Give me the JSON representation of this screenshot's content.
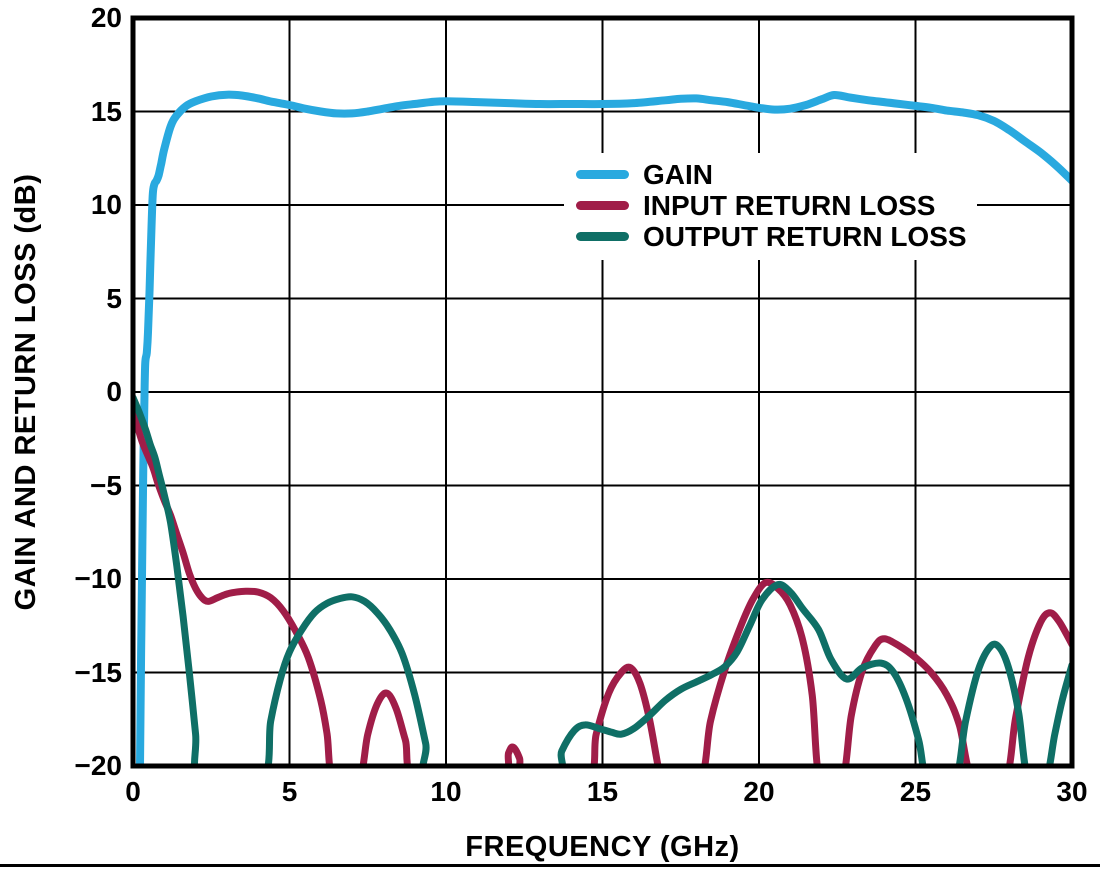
{
  "figure": {
    "background": "#ffffff",
    "separator_color": "#000000"
  },
  "chart_data": {
    "type": "line",
    "title": "",
    "xlabel": "FREQUENCY (GHz)",
    "ylabel": "GAIN AND RETURN LOSS (dB)",
    "xlim": [
      0,
      30
    ],
    "ylim": [
      -20,
      20
    ],
    "xticks": [
      0,
      5,
      10,
      15,
      20,
      25,
      30
    ],
    "yticks": [
      20,
      15,
      10,
      5,
      0,
      -5,
      -10,
      -15,
      -20
    ],
    "xtick_labels": [
      "0",
      "5",
      "10",
      "15",
      "20",
      "25",
      "30"
    ],
    "ytick_labels": [
      "20",
      "15",
      "10",
      "5",
      "0",
      "−5",
      "−10",
      "−15",
      "−20"
    ],
    "grid": true,
    "grid_color": "#000000",
    "frame_color": "#000000",
    "legend_position": "upper-center",
    "offscale_note": "values of -20.8 indicate the curve dips below the -20 dB axis (clipped in figure)",
    "series": [
      {
        "name": "GAIN",
        "color": "#29A9DF",
        "width": 8,
        "points": [
          [
            0.22,
            -20.6
          ],
          [
            0.26,
            -14
          ],
          [
            0.3,
            -8
          ],
          [
            0.33,
            -4
          ],
          [
            0.36,
            -0.8
          ],
          [
            0.39,
            1.5
          ],
          [
            0.44,
            2.1
          ],
          [
            0.48,
            3.2
          ],
          [
            0.53,
            5.5
          ],
          [
            0.58,
            8.3
          ],
          [
            0.63,
            10.5
          ],
          [
            0.68,
            11.1
          ],
          [
            0.75,
            11.3
          ],
          [
            0.82,
            11.6
          ],
          [
            0.9,
            12.2
          ],
          [
            1.0,
            13.0
          ],
          [
            1.2,
            14.2
          ],
          [
            1.4,
            14.8
          ],
          [
            1.7,
            15.3
          ],
          [
            2.0,
            15.55
          ],
          [
            2.5,
            15.8
          ],
          [
            3.0,
            15.9
          ],
          [
            3.5,
            15.85
          ],
          [
            4.0,
            15.7
          ],
          [
            4.5,
            15.5
          ],
          [
            5.0,
            15.35
          ],
          [
            5.5,
            15.15
          ],
          [
            6.0,
            15.0
          ],
          [
            6.5,
            14.9
          ],
          [
            7.0,
            14.9
          ],
          [
            7.5,
            15.0
          ],
          [
            8.0,
            15.15
          ],
          [
            8.5,
            15.3
          ],
          [
            9.0,
            15.4
          ],
          [
            9.5,
            15.5
          ],
          [
            10.0,
            15.55
          ],
          [
            11.0,
            15.5
          ],
          [
            12.0,
            15.45
          ],
          [
            13.0,
            15.4
          ],
          [
            14.0,
            15.4
          ],
          [
            15.0,
            15.4
          ],
          [
            16.0,
            15.45
          ],
          [
            17.0,
            15.6
          ],
          [
            17.5,
            15.68
          ],
          [
            18.0,
            15.7
          ],
          [
            18.5,
            15.6
          ],
          [
            19.0,
            15.5
          ],
          [
            19.5,
            15.35
          ],
          [
            20.0,
            15.2
          ],
          [
            20.5,
            15.1
          ],
          [
            21.0,
            15.15
          ],
          [
            21.5,
            15.35
          ],
          [
            22.0,
            15.65
          ],
          [
            22.4,
            15.88
          ],
          [
            22.9,
            15.75
          ],
          [
            23.5,
            15.6
          ],
          [
            24.0,
            15.5
          ],
          [
            24.5,
            15.4
          ],
          [
            25.0,
            15.3
          ],
          [
            25.5,
            15.2
          ],
          [
            26.0,
            15.05
          ],
          [
            26.5,
            14.95
          ],
          [
            27.0,
            14.8
          ],
          [
            27.5,
            14.5
          ],
          [
            28.0,
            14.0
          ],
          [
            28.5,
            13.4
          ],
          [
            29.0,
            12.8
          ],
          [
            29.5,
            12.1
          ],
          [
            30.0,
            11.3
          ]
        ]
      },
      {
        "name": "INPUT RETURN LOSS",
        "color": "#A01D48",
        "width": 7,
        "points": [
          [
            0,
            -1.0
          ],
          [
            0.15,
            -1.9
          ],
          [
            0.3,
            -2.7
          ],
          [
            0.5,
            -3.5
          ],
          [
            0.65,
            -4.1
          ],
          [
            0.8,
            -4.9
          ],
          [
            1.0,
            -5.8
          ],
          [
            1.2,
            -6.6
          ],
          [
            1.4,
            -7.6
          ],
          [
            1.6,
            -8.6
          ],
          [
            1.8,
            -9.7
          ],
          [
            2.0,
            -10.5
          ],
          [
            2.2,
            -11.0
          ],
          [
            2.4,
            -11.2
          ],
          [
            2.7,
            -11.0
          ],
          [
            3.0,
            -10.8
          ],
          [
            3.3,
            -10.7
          ],
          [
            3.6,
            -10.65
          ],
          [
            4.0,
            -10.7
          ],
          [
            4.4,
            -11.0
          ],
          [
            4.8,
            -11.7
          ],
          [
            5.2,
            -12.8
          ],
          [
            5.6,
            -14.2
          ],
          [
            6.0,
            -16.5
          ],
          [
            6.2,
            -18.3
          ],
          [
            6.4,
            -20.8
          ],
          [
            7.2,
            -20.8
          ],
          [
            7.5,
            -18.3
          ],
          [
            7.8,
            -16.7
          ],
          [
            8.1,
            -16.1
          ],
          [
            8.4,
            -16.9
          ],
          [
            8.7,
            -18.6
          ],
          [
            9.1,
            -20.8
          ],
          [
            11.7,
            -20.8
          ],
          [
            12.0,
            -19.3
          ],
          [
            12.15,
            -19.0
          ],
          [
            12.35,
            -19.6
          ],
          [
            12.55,
            -20.8
          ],
          [
            14.5,
            -20.8
          ],
          [
            14.8,
            -18.3
          ],
          [
            15.2,
            -16.1
          ],
          [
            15.6,
            -15.0
          ],
          [
            15.9,
            -14.75
          ],
          [
            16.2,
            -15.6
          ],
          [
            16.5,
            -17.5
          ],
          [
            16.8,
            -20.2
          ],
          [
            16.95,
            -20.8
          ],
          [
            18.1,
            -20.8
          ],
          [
            18.45,
            -17.6
          ],
          [
            18.9,
            -14.9
          ],
          [
            19.4,
            -12.6
          ],
          [
            19.8,
            -11.1
          ],
          [
            20.2,
            -10.2
          ],
          [
            20.6,
            -10.5
          ],
          [
            21.0,
            -11.4
          ],
          [
            21.4,
            -13.3
          ],
          [
            21.7,
            -16.2
          ],
          [
            21.95,
            -20.8
          ],
          [
            22.65,
            -20.8
          ],
          [
            22.95,
            -17.3
          ],
          [
            23.3,
            -14.9
          ],
          [
            23.7,
            -13.6
          ],
          [
            24.0,
            -13.2
          ],
          [
            24.5,
            -13.6
          ],
          [
            25.0,
            -14.2
          ],
          [
            25.5,
            -15.0
          ],
          [
            26.0,
            -16.2
          ],
          [
            26.4,
            -17.8
          ],
          [
            26.85,
            -20.8
          ],
          [
            27.85,
            -20.8
          ],
          [
            28.2,
            -17.4
          ],
          [
            28.6,
            -14.2
          ],
          [
            29.0,
            -12.3
          ],
          [
            29.3,
            -11.8
          ],
          [
            29.6,
            -12.3
          ],
          [
            30.0,
            -13.5
          ]
        ]
      },
      {
        "name": "OUTPUT RETURN LOSS",
        "color": "#0F6F66",
        "width": 7,
        "points": [
          [
            0,
            -0.3
          ],
          [
            0.2,
            -1.1
          ],
          [
            0.4,
            -2.0
          ],
          [
            0.55,
            -2.8
          ],
          [
            0.7,
            -3.5
          ],
          [
            0.85,
            -4.5
          ],
          [
            1.0,
            -5.5
          ],
          [
            1.2,
            -7.0
          ],
          [
            1.4,
            -9.3
          ],
          [
            1.6,
            -12.0
          ],
          [
            1.8,
            -15.0
          ],
          [
            2.0,
            -18.3
          ],
          [
            2.15,
            -20.8
          ],
          [
            4.1,
            -20.8
          ],
          [
            4.4,
            -17.6
          ],
          [
            4.7,
            -15.4
          ],
          [
            5.0,
            -13.9
          ],
          [
            5.4,
            -12.7
          ],
          [
            5.8,
            -11.8
          ],
          [
            6.2,
            -11.3
          ],
          [
            6.6,
            -11.05
          ],
          [
            7.0,
            -10.95
          ],
          [
            7.4,
            -11.2
          ],
          [
            7.8,
            -11.8
          ],
          [
            8.2,
            -12.7
          ],
          [
            8.6,
            -14.0
          ],
          [
            9.0,
            -16.2
          ],
          [
            9.35,
            -18.8
          ],
          [
            9.6,
            -20.8
          ],
          [
            13.35,
            -20.8
          ],
          [
            13.7,
            -19.2
          ],
          [
            14.1,
            -18.1
          ],
          [
            14.45,
            -17.8
          ],
          [
            14.9,
            -18.0
          ],
          [
            15.3,
            -18.2
          ],
          [
            15.6,
            -18.3
          ],
          [
            16.0,
            -18.0
          ],
          [
            16.5,
            -17.3
          ],
          [
            17.0,
            -16.5
          ],
          [
            17.5,
            -15.9
          ],
          [
            18.0,
            -15.5
          ],
          [
            18.5,
            -15.1
          ],
          [
            18.9,
            -14.7
          ],
          [
            19.3,
            -13.9
          ],
          [
            19.7,
            -12.5
          ],
          [
            20.1,
            -11.1
          ],
          [
            20.6,
            -10.3
          ],
          [
            21.0,
            -10.7
          ],
          [
            21.4,
            -11.6
          ],
          [
            21.9,
            -12.7
          ],
          [
            22.3,
            -14.3
          ],
          [
            22.8,
            -15.35
          ],
          [
            23.3,
            -14.75
          ],
          [
            23.9,
            -14.5
          ],
          [
            24.3,
            -15.0
          ],
          [
            24.7,
            -16.4
          ],
          [
            25.1,
            -18.6
          ],
          [
            25.4,
            -20.8
          ],
          [
            26.25,
            -20.8
          ],
          [
            26.6,
            -17.6
          ],
          [
            27.0,
            -14.9
          ],
          [
            27.4,
            -13.6
          ],
          [
            27.7,
            -13.7
          ],
          [
            28.0,
            -14.9
          ],
          [
            28.3,
            -17.2
          ],
          [
            28.6,
            -20.8
          ],
          [
            29.15,
            -20.8
          ],
          [
            29.45,
            -18.3
          ],
          [
            29.7,
            -16.4
          ],
          [
            30.0,
            -14.6
          ]
        ]
      }
    ]
  }
}
